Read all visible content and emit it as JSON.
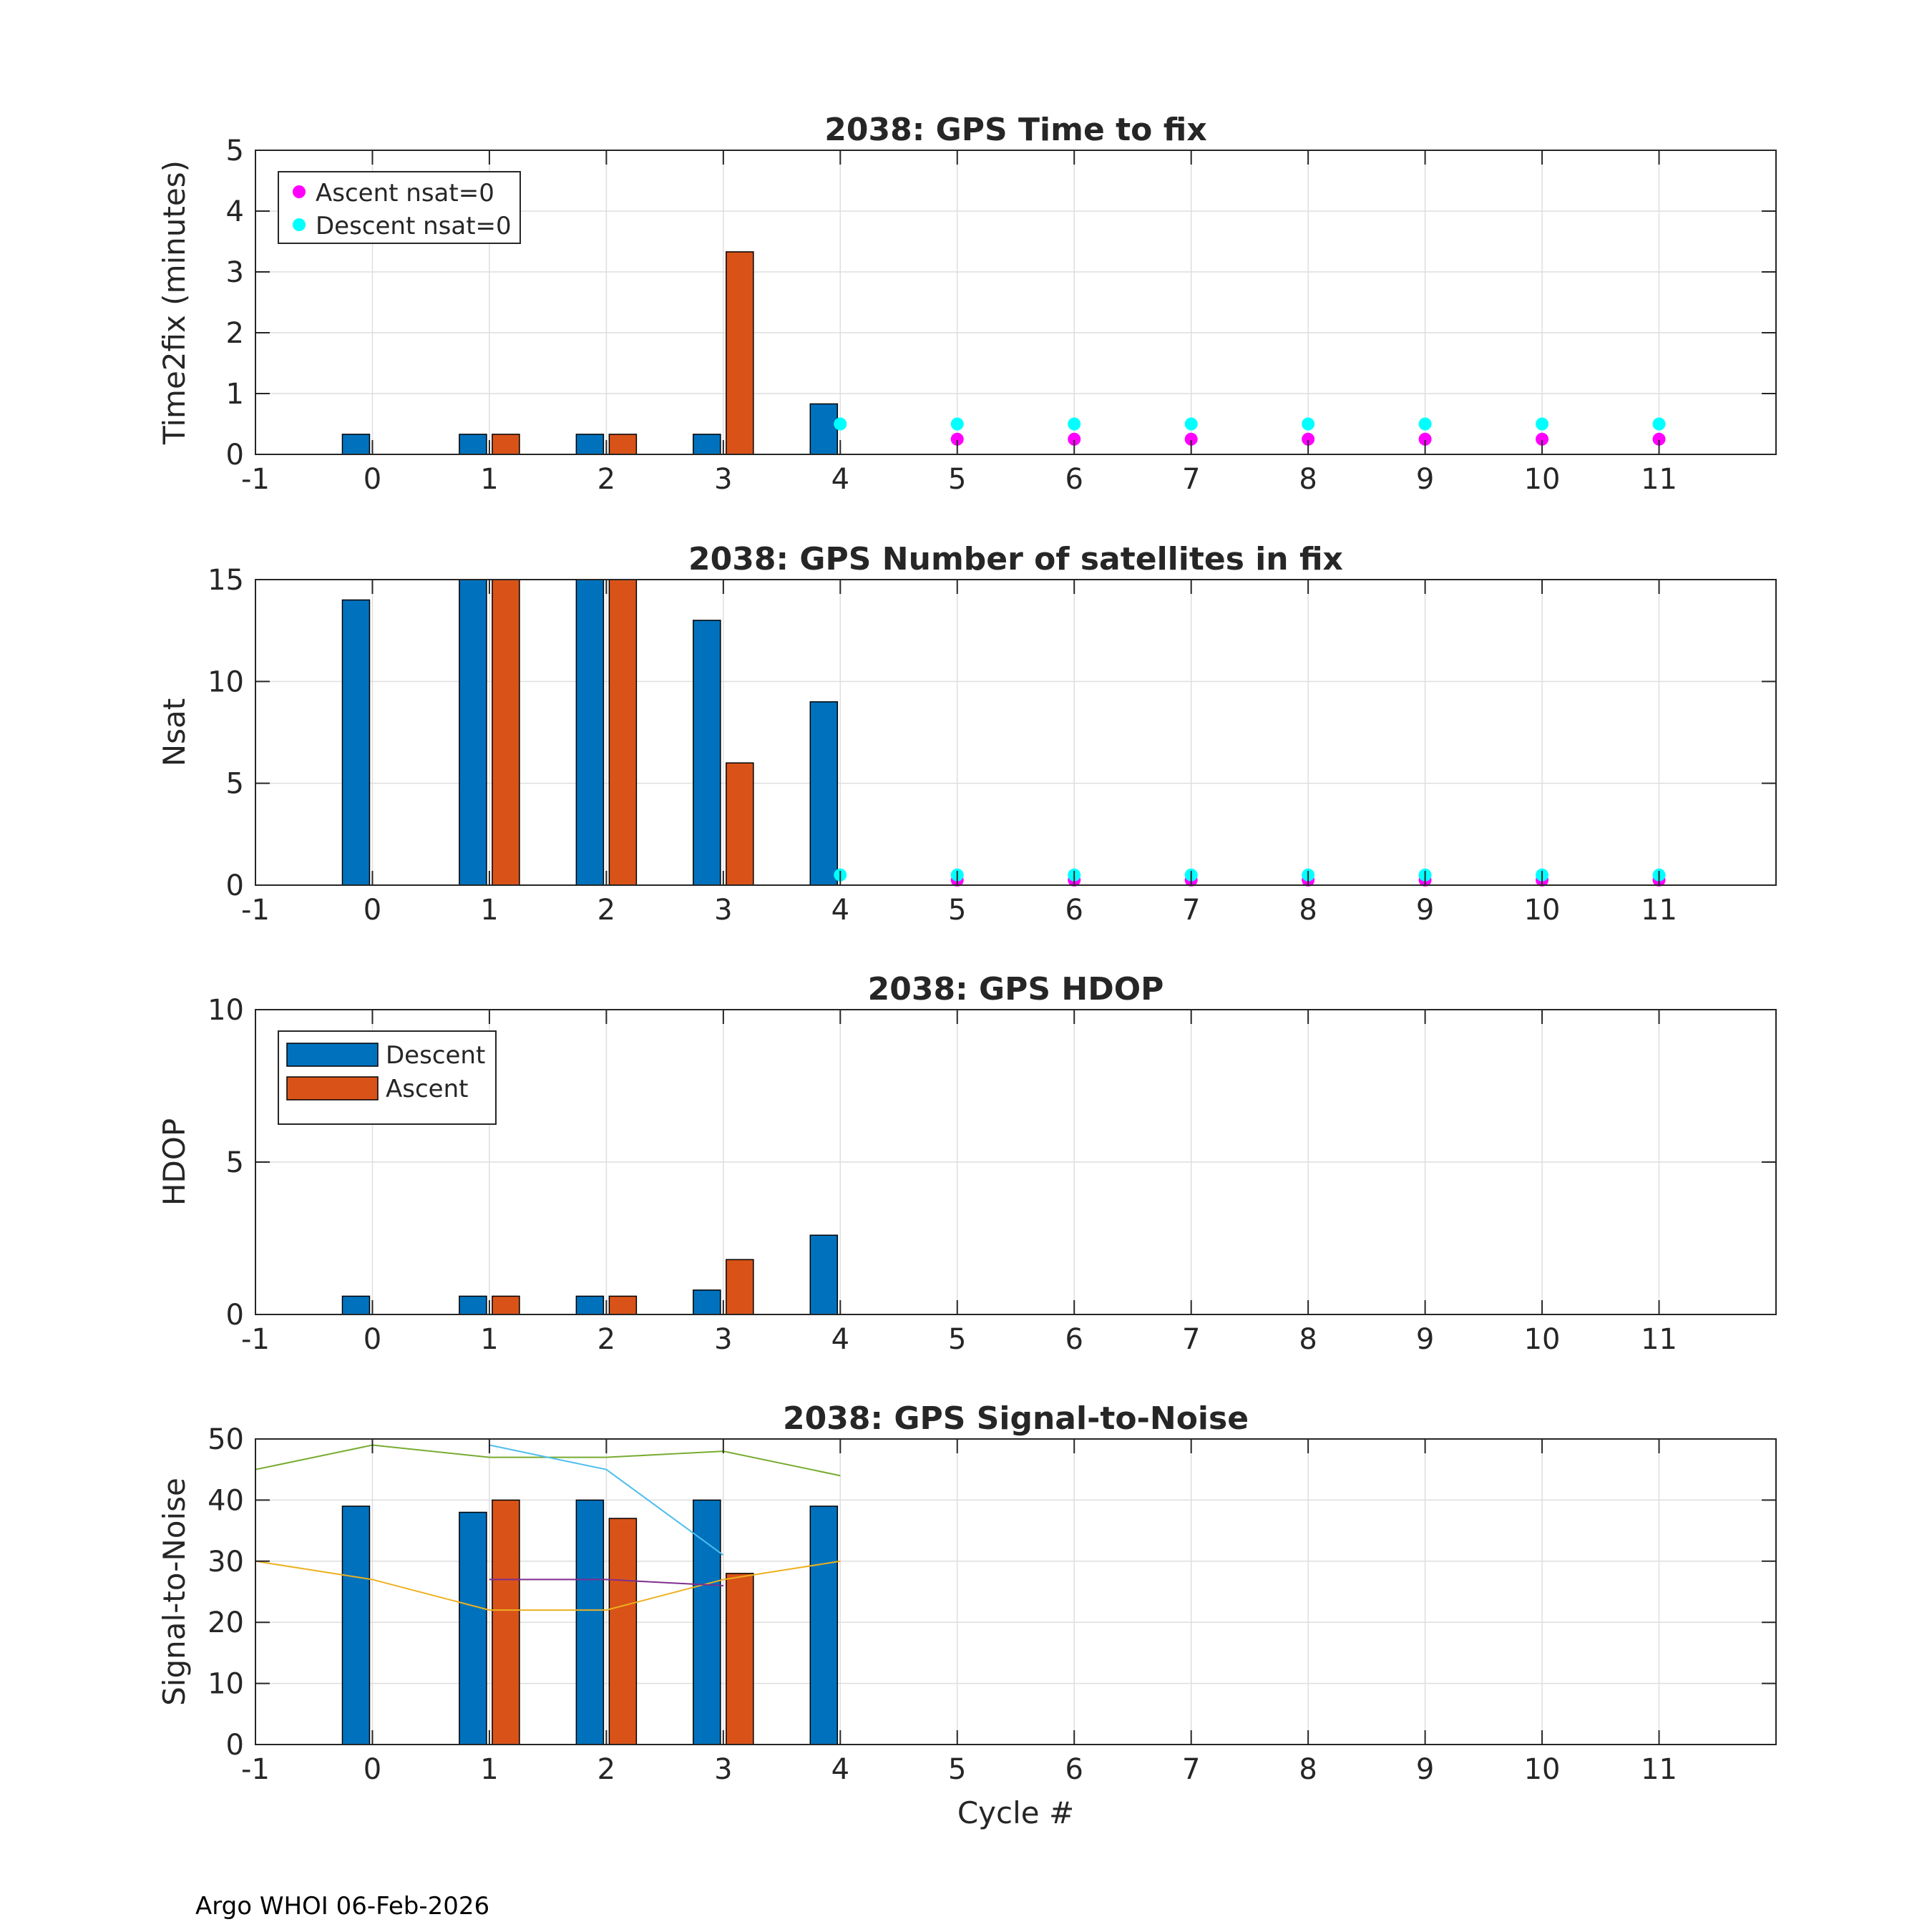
{
  "chart_data": [
    {
      "type": "bar",
      "title": "2038: GPS Time to fix",
      "xlabel": "",
      "ylabel": "Time2fix (minutes)",
      "xlim": [
        -1,
        12
      ],
      "ylim": [
        0,
        5
      ],
      "xticks": [
        "-1",
        "0",
        "1",
        "2",
        "3",
        "4",
        "5",
        "6",
        "7",
        "8",
        "9",
        "10",
        "11"
      ],
      "yticks": [
        "0",
        "1",
        "2",
        "3",
        "4",
        "5"
      ],
      "grid": true,
      "series": [
        {
          "name": "Descent",
          "kind": "bar",
          "color": "#0072bd",
          "x": [
            0,
            1,
            2,
            3,
            4
          ],
          "values": [
            0.33,
            0.33,
            0.33,
            0.33,
            0.83
          ]
        },
        {
          "name": "Ascent",
          "kind": "bar",
          "color": "#d95319",
          "x": [
            1,
            2,
            3
          ],
          "values": [
            0.33,
            0.33,
            3.33
          ]
        },
        {
          "name": "Ascent nsat=0",
          "kind": "scatter",
          "color": "#ff00ff",
          "x": [
            5,
            6,
            7,
            8,
            9,
            10,
            11
          ],
          "values": [
            0.25,
            0.25,
            0.25,
            0.25,
            0.25,
            0.25,
            0.25
          ]
        },
        {
          "name": "Descent nsat=0",
          "kind": "scatter",
          "color": "#00ffff",
          "x": [
            4,
            5,
            6,
            7,
            8,
            9,
            10,
            11
          ],
          "values": [
            0.5,
            0.5,
            0.5,
            0.5,
            0.5,
            0.5,
            0.5,
            0.5
          ]
        }
      ],
      "legend": {
        "position": "top-left",
        "entries": [
          "Ascent nsat=0",
          "Descent nsat=0"
        ]
      }
    },
    {
      "type": "bar",
      "title": "2038: GPS Number of satellites in fix",
      "xlabel": "",
      "ylabel": "Nsat",
      "xlim": [
        -1,
        12
      ],
      "ylim": [
        0,
        15
      ],
      "xticks": [
        "-1",
        "0",
        "1",
        "2",
        "3",
        "4",
        "5",
        "6",
        "7",
        "8",
        "9",
        "10",
        "11"
      ],
      "yticks": [
        "0",
        "5",
        "10",
        "15"
      ],
      "grid": true,
      "series": [
        {
          "name": "Descent",
          "kind": "bar",
          "color": "#0072bd",
          "x": [
            0,
            1,
            2,
            3,
            4
          ],
          "values": [
            14,
            15,
            15,
            13,
            9
          ]
        },
        {
          "name": "Ascent",
          "kind": "bar",
          "color": "#d95319",
          "x": [
            1,
            2,
            3
          ],
          "values": [
            15,
            15,
            6
          ]
        },
        {
          "name": "Ascent nsat=0",
          "kind": "scatter",
          "color": "#ff00ff",
          "x": [
            5,
            6,
            7,
            8,
            9,
            10,
            11
          ],
          "values": [
            0.25,
            0.25,
            0.25,
            0.25,
            0.25,
            0.25,
            0.25
          ]
        },
        {
          "name": "Descent nsat=0",
          "kind": "scatter",
          "color": "#00ffff",
          "x": [
            4,
            5,
            6,
            7,
            8,
            9,
            10,
            11
          ],
          "values": [
            0.5,
            0.5,
            0.5,
            0.5,
            0.5,
            0.5,
            0.5,
            0.5
          ]
        }
      ]
    },
    {
      "type": "bar",
      "title": "2038: GPS HDOP",
      "xlabel": "",
      "ylabel": "HDOP",
      "xlim": [
        -1,
        12
      ],
      "ylim": [
        0,
        10
      ],
      "xticks": [
        "-1",
        "0",
        "1",
        "2",
        "3",
        "4",
        "5",
        "6",
        "7",
        "8",
        "9",
        "10",
        "11"
      ],
      "yticks": [
        "0",
        "5",
        "10"
      ],
      "grid": true,
      "series": [
        {
          "name": "Descent",
          "kind": "bar",
          "color": "#0072bd",
          "x": [
            0,
            1,
            2,
            3,
            4
          ],
          "values": [
            0.6,
            0.6,
            0.6,
            0.8,
            2.6
          ]
        },
        {
          "name": "Ascent",
          "kind": "bar",
          "color": "#d95319",
          "x": [
            1,
            2,
            3
          ],
          "values": [
            0.6,
            0.6,
            1.8
          ]
        }
      ],
      "legend": {
        "position": "top-left",
        "entries": [
          "Descent",
          "Ascent"
        ]
      }
    },
    {
      "type": "bar",
      "title": "2038: GPS Signal-to-Noise",
      "xlabel": "Cycle #",
      "ylabel": "Signal-to-Noise",
      "xlim": [
        -1,
        12
      ],
      "ylim": [
        0,
        50
      ],
      "xticks": [
        "-1",
        "0",
        "1",
        "2",
        "3",
        "4",
        "5",
        "6",
        "7",
        "8",
        "9",
        "10",
        "11"
      ],
      "yticks": [
        "0",
        "10",
        "20",
        "30",
        "40",
        "50"
      ],
      "grid": true,
      "series": [
        {
          "name": "Descent",
          "kind": "bar",
          "color": "#0072bd",
          "x": [
            0,
            1,
            2,
            3,
            4
          ],
          "values": [
            39,
            38,
            40,
            40,
            39
          ]
        },
        {
          "name": "Ascent",
          "kind": "bar",
          "color": "#d95319",
          "x": [
            1,
            2,
            3
          ],
          "values": [
            40,
            37,
            28
          ]
        },
        {
          "name": "line-green",
          "kind": "line",
          "color": "#77ac30",
          "x": [
            -1,
            0,
            1,
            2,
            3,
            4
          ],
          "values": [
            45,
            49,
            47,
            47,
            48,
            44
          ]
        },
        {
          "name": "line-cyan",
          "kind": "line",
          "color": "#4dbeee",
          "x": [
            1,
            2,
            3
          ],
          "values": [
            49,
            45,
            31
          ]
        },
        {
          "name": "line-yellow",
          "kind": "line",
          "color": "#edb120",
          "x": [
            -1,
            0,
            1,
            2,
            3,
            4
          ],
          "values": [
            30,
            27,
            22,
            22,
            27,
            30
          ]
        },
        {
          "name": "line-purple",
          "kind": "line",
          "color": "#7e2f8e",
          "x": [
            1,
            2,
            3
          ],
          "values": [
            27,
            27,
            26
          ]
        }
      ]
    }
  ],
  "footer": "Argo WHOI 06-Feb-2026"
}
